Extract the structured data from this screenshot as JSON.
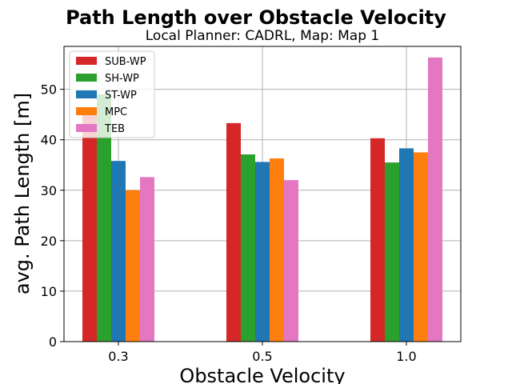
{
  "chart_data": {
    "type": "bar",
    "title": "Path Length over Obstacle Velocity",
    "subtitle": "Local Planner: CADRL, Map: Map 1",
    "xlabel": "Obstacle Velocity",
    "ylabel": "avg. Path Length [m]",
    "categories": [
      "0.3",
      "0.5",
      "1.0"
    ],
    "ylim": [
      0,
      58.5
    ],
    "yticks": [
      0,
      10,
      20,
      30,
      40,
      50
    ],
    "grid": true,
    "legend_position": "top-left",
    "series": [
      {
        "name": "SUB-WP",
        "color": "#d62728",
        "values": [
          46.0,
          43.3,
          40.3
        ]
      },
      {
        "name": "SH-WP",
        "color": "#2ca02c",
        "values": [
          49.0,
          37.1,
          35.5
        ]
      },
      {
        "name": "ST-WP",
        "color": "#1f77b4",
        "values": [
          35.8,
          35.6,
          38.3
        ]
      },
      {
        "name": "MPC",
        "color": "#ff7f0e",
        "values": [
          30.0,
          36.3,
          37.5
        ]
      },
      {
        "name": "TEB",
        "color": "#e377c2",
        "values": [
          32.6,
          32.0,
          56.3
        ]
      }
    ]
  }
}
